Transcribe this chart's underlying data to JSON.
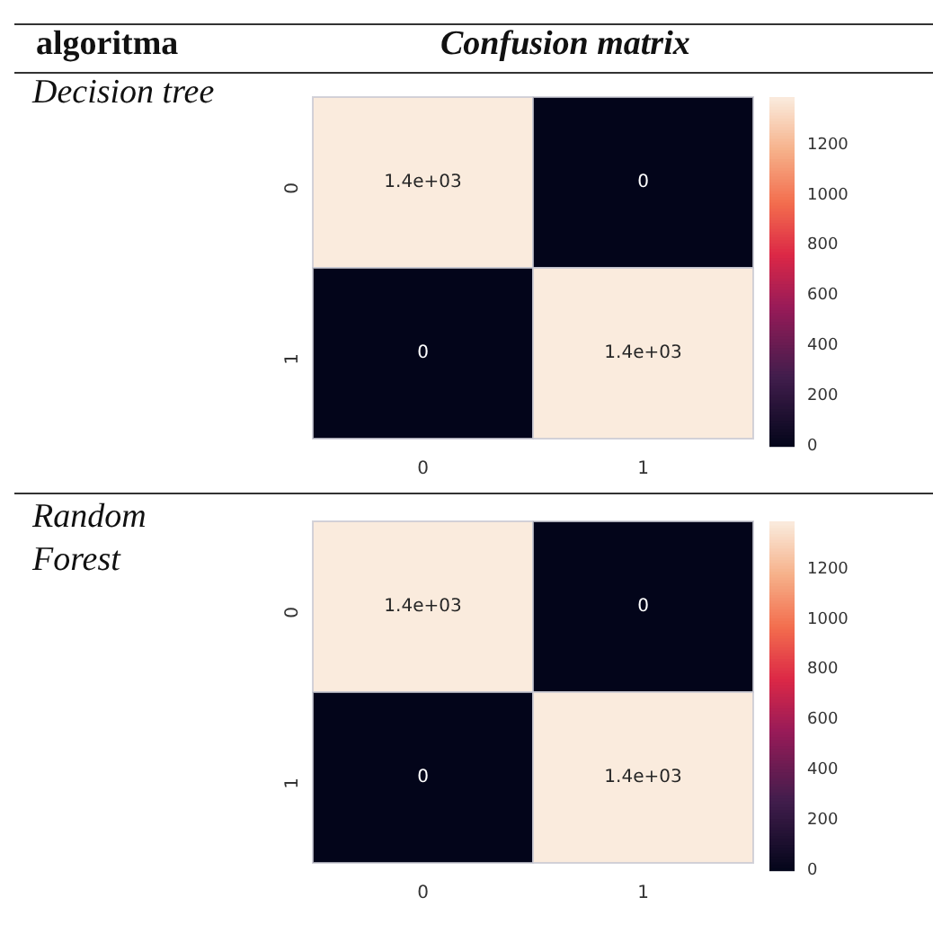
{
  "chart_data": [
    {
      "type": "heatmap",
      "title": "Decision tree",
      "annotations": [
        "algoritma",
        "Confusion matrix"
      ],
      "categories": [
        "0",
        "1"
      ],
      "y_categories": [
        "0",
        "1"
      ],
      "cells": [
        [
          1390,
          0
        ],
        [
          0,
          1390
        ]
      ],
      "cell_labels": [
        [
          "1.4e+03",
          "0"
        ],
        [
          "0",
          "1.4e+03"
        ]
      ],
      "clim": [
        0,
        1390
      ],
      "cticks": [
        0,
        200,
        400,
        600,
        800,
        1000,
        1200
      ]
    },
    {
      "type": "heatmap",
      "title": "Random Forest",
      "categories": [
        "0",
        "1"
      ],
      "y_categories": [
        "0",
        "1"
      ],
      "cells": [
        [
          1390,
          0
        ],
        [
          0,
          1390
        ]
      ],
      "cell_labels": [
        [
          "1.4e+03",
          "0"
        ],
        [
          "0",
          "1.4e+03"
        ]
      ],
      "clim": [
        0,
        1390
      ],
      "cticks": [
        0,
        200,
        400,
        600,
        800,
        1000,
        1200
      ]
    }
  ]
}
